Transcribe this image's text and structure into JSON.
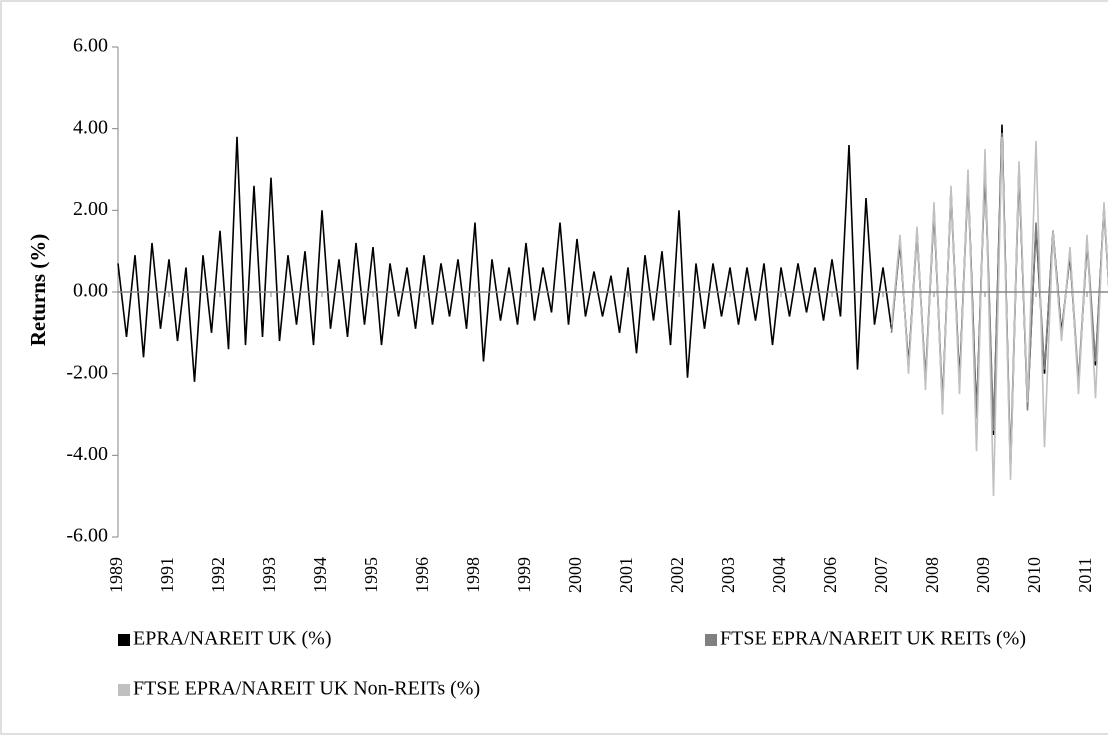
{
  "chart_data": {
    "type": "line",
    "y_label": "Returns (%)",
    "ylim": [
      -6,
      6
    ],
    "yticks": [
      {
        "value": 6,
        "label": "6.00"
      },
      {
        "value": 4,
        "label": "4.00"
      },
      {
        "value": 2,
        "label": "2.00"
      },
      {
        "value": 0,
        "label": "0.00"
      },
      {
        "value": -2,
        "label": "-2.00"
      },
      {
        "value": -4,
        "label": "-4.00"
      },
      {
        "value": -6,
        "label": "-6.00"
      }
    ],
    "legend": "bottom",
    "categories": [
      "1989",
      null,
      null,
      null,
      null,
      null,
      "1991",
      null,
      null,
      null,
      null,
      null,
      "1992",
      null,
      null,
      null,
      null,
      null,
      "1993",
      null,
      null,
      null,
      null,
      null,
      "1994",
      null,
      null,
      null,
      null,
      null,
      "1995",
      null,
      null,
      null,
      null,
      null,
      "1996",
      null,
      null,
      null,
      null,
      null,
      "1998",
      null,
      null,
      null,
      null,
      null,
      "1999",
      null,
      null,
      null,
      null,
      null,
      "2000",
      null,
      null,
      null,
      null,
      null,
      "2001",
      null,
      null,
      null,
      null,
      null,
      "2002",
      null,
      null,
      null,
      null,
      null,
      "2003",
      null,
      null,
      null,
      null,
      null,
      "2004",
      null,
      null,
      null,
      null,
      null,
      "2006",
      null,
      null,
      null,
      null,
      null,
      "2007",
      null,
      null,
      null,
      null,
      null,
      "2008",
      null,
      null,
      null,
      null,
      null,
      "2009",
      null,
      null,
      null,
      null,
      null,
      "2010",
      null,
      null,
      null,
      null,
      null,
      "2011",
      null,
      null,
      null,
      null,
      null
    ],
    "series": [
      {
        "name": "EPRA/NAREIT UK (%)",
        "color": "#000000",
        "values": [
          0.7,
          -1.1,
          0.9,
          -1.6,
          1.2,
          -0.9,
          0.8,
          -1.2,
          0.6,
          -2.2,
          0.9,
          -1.0,
          1.5,
          -1.4,
          3.8,
          -1.3,
          2.6,
          -1.1,
          2.8,
          -1.2,
          0.9,
          -0.8,
          1.0,
          -1.3,
          2.0,
          -0.9,
          0.8,
          -1.1,
          1.2,
          -0.8,
          1.1,
          -1.3,
          0.7,
          -0.6,
          0.6,
          -0.9,
          0.9,
          -0.8,
          0.7,
          -0.6,
          0.8,
          -0.9,
          1.7,
          -1.7,
          0.8,
          -0.7,
          0.6,
          -0.8,
          1.2,
          -0.7,
          0.6,
          -0.5,
          1.7,
          -0.8,
          1.3,
          -0.6,
          0.5,
          -0.6,
          0.4,
          -1.0,
          0.6,
          -1.5,
          0.9,
          -0.7,
          1.0,
          -1.3,
          2.0,
          -2.1,
          0.7,
          -0.9,
          0.7,
          -0.6,
          0.6,
          -0.8,
          0.6,
          -0.7,
          0.7,
          -1.3,
          0.6,
          -0.6,
          0.7,
          -0.5,
          0.6,
          -0.7,
          0.8,
          -0.6,
          3.6,
          -1.9,
          2.3,
          -0.8,
          0.6,
          -0.9,
          1.2,
          -1.8,
          1.5,
          -2.2,
          2.0,
          -2.8,
          2.5,
          -2.2,
          2.8,
          -3.0,
          3.0,
          -3.5,
          4.1,
          -4.4,
          3.0,
          -2.8,
          1.6,
          -2.0,
          1.5,
          -1.0,
          0.9,
          -2.3,
          1.2,
          -1.8,
          2.1,
          -1.4,
          1.5,
          -0.7
        ]
      },
      {
        "name": "FTSE EPRA/NAREIT UK REITs (%)",
        "color": "#808080",
        "values": [
          null,
          null,
          null,
          null,
          null,
          null,
          null,
          null,
          null,
          null,
          null,
          null,
          null,
          null,
          null,
          null,
          null,
          null,
          null,
          null,
          null,
          null,
          null,
          null,
          null,
          null,
          null,
          null,
          null,
          null,
          null,
          null,
          null,
          null,
          null,
          null,
          null,
          null,
          null,
          null,
          null,
          null,
          null,
          null,
          null,
          null,
          null,
          null,
          null,
          null,
          null,
          null,
          null,
          null,
          null,
          null,
          null,
          null,
          null,
          null,
          null,
          null,
          null,
          null,
          null,
          null,
          null,
          null,
          null,
          null,
          null,
          null,
          null,
          null,
          null,
          null,
          null,
          null,
          null,
          null,
          null,
          null,
          null,
          null,
          null,
          null,
          null,
          null,
          null,
          null,
          null,
          -1.0,
          1.3,
          -1.9,
          1.4,
          -2.1,
          2.1,
          -2.7,
          2.4,
          -2.3,
          2.7,
          -3.1,
          3.2,
          -3.4,
          3.9,
          -4.2,
          3.1,
          -2.9,
          1.7,
          -1.9,
          1.4,
          -1.1,
          1.0,
          -2.2,
          1.3,
          -1.7,
          2.0,
          -1.3,
          1.4,
          -0.8
        ]
      },
      {
        "name": "FTSE EPRA/NAREIT UK Non-REITs (%)",
        "color": "#c0c0c0",
        "values": [
          null,
          null,
          null,
          null,
          null,
          null,
          null,
          null,
          null,
          null,
          null,
          null,
          null,
          null,
          null,
          null,
          null,
          null,
          null,
          null,
          null,
          null,
          null,
          null,
          null,
          null,
          null,
          null,
          null,
          null,
          null,
          null,
          null,
          null,
          null,
          null,
          null,
          null,
          null,
          null,
          null,
          null,
          null,
          null,
          null,
          null,
          null,
          null,
          null,
          null,
          null,
          null,
          null,
          null,
          null,
          null,
          null,
          null,
          null,
          null,
          null,
          null,
          null,
          null,
          null,
          null,
          null,
          null,
          null,
          null,
          null,
          null,
          null,
          null,
          null,
          null,
          null,
          null,
          null,
          null,
          null,
          null,
          null,
          null,
          null,
          null,
          null,
          null,
          null,
          null,
          null,
          -0.8,
          1.4,
          -2.0,
          1.6,
          -2.4,
          2.2,
          -3.0,
          2.6,
          -2.5,
          3.0,
          -3.9,
          3.5,
          -5.0,
          3.8,
          -4.6,
          3.2,
          -2.7,
          3.7,
          -3.8,
          1.5,
          -1.2,
          1.1,
          -2.5,
          1.4,
          -2.6,
          2.2,
          -1.5,
          1.6,
          -0.9
        ]
      }
    ]
  }
}
